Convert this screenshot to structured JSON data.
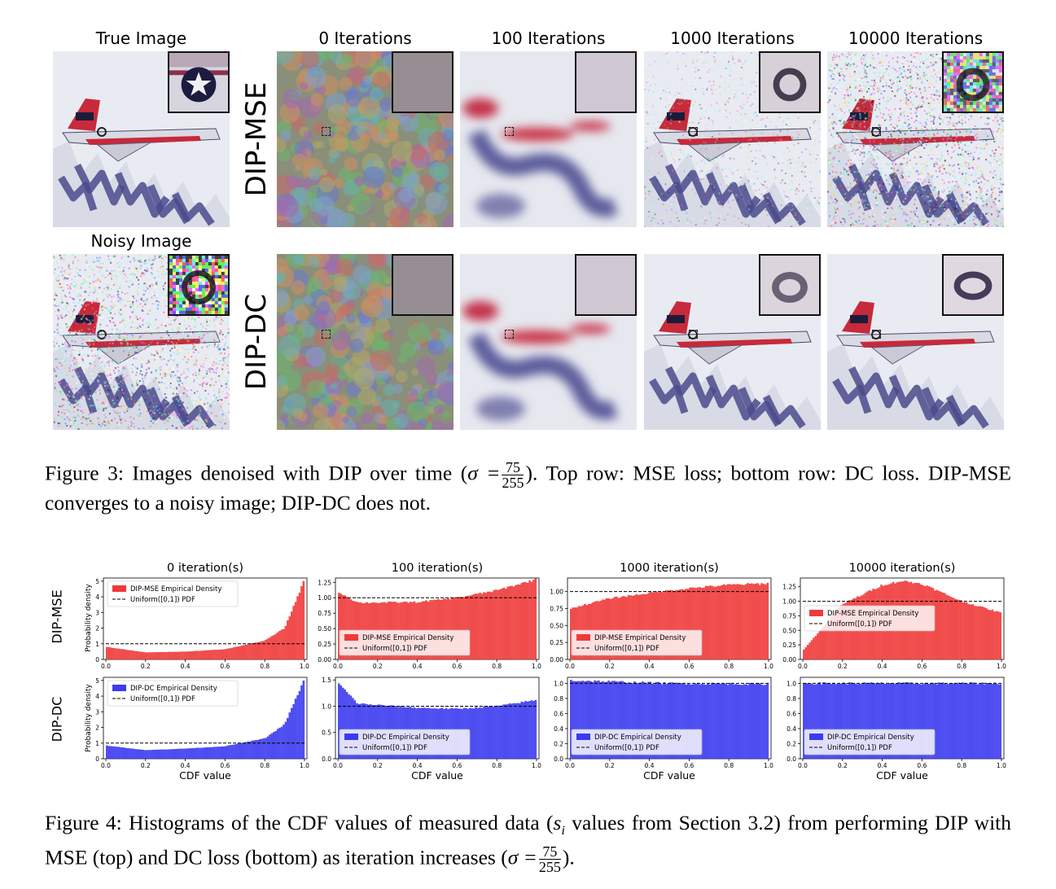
{
  "figure3": {
    "column_titles": [
      "True Image",
      "0 Iterations",
      "100 Iterations",
      "1000 Iterations",
      "10000 Iterations"
    ],
    "noisy_title": "Noisy Image",
    "row_labels": [
      "DIP-MSE",
      "DIP-DC"
    ],
    "caption": {
      "prefix": "Figure 3: Images denoised with DIP over time (",
      "sigma": "σ =",
      "frac_num": "75",
      "frac_den": "255",
      "suffix": "). Top row: MSE loss; bottom row: DC loss. DIP-MSE converges to a noisy image; DIP-DC does not."
    }
  },
  "figure4": {
    "row_labels": [
      "DIP-MSE",
      "DIP-DC"
    ],
    "ylabel": "Probability density",
    "xlabel": "CDF value",
    "legend_labels": {
      "mse": "DIP-MSE Empirical Density",
      "dc": "DIP-DC Empirical Density",
      "uniform": "Uniform([0,1]) PDF"
    },
    "colors": {
      "mse": "#f03a3a",
      "dc": "#3b3bf0"
    },
    "caption": {
      "prefix": "Figure 4: Histograms of the CDF values of measured data (",
      "si": "s",
      "si_sub": "i",
      "middle": " values from Section 3.2) from performing DIP with MSE (top) and DC loss (bottom) as iteration increases (",
      "sigma": "σ =",
      "frac_num": "75",
      "frac_den": "255",
      "suffix": ")."
    }
  },
  "chart_data": [
    {
      "type": "bar",
      "title": "0 iteration(s)",
      "series": [
        {
          "name": "DIP-MSE Empirical Density"
        },
        {
          "name": "Uniform([0,1]) PDF"
        }
      ],
      "ylim": [
        0,
        5.2
      ],
      "yticks": [
        0,
        1,
        2,
        3,
        4,
        5
      ],
      "xticks": [
        0.0,
        0.2,
        0.4,
        0.6,
        0.8,
        1.0
      ],
      "legend": "upper-left",
      "shape": "exp-rise",
      "values_at": {
        "0.0": 0.8,
        "0.2": 0.45,
        "0.4": 0.5,
        "0.6": 0.65,
        "0.8": 1.2,
        "0.9": 2.0,
        "1.0": 5.1
      }
    },
    {
      "type": "bar",
      "title": "100 iteration(s)",
      "series": [
        {
          "name": "DIP-MSE Empirical Density"
        },
        {
          "name": "Uniform([0,1]) PDF"
        }
      ],
      "ylim": [
        0,
        1.32
      ],
      "yticks": [
        0.0,
        0.25,
        0.5,
        0.75,
        1.0,
        1.25
      ],
      "xticks": [
        0.0,
        0.2,
        0.4,
        0.6,
        0.8,
        1.0
      ],
      "legend": "lower-left",
      "values_at": {
        "0.0": 1.1,
        "0.1": 0.92,
        "0.4": 0.93,
        "0.6": 1.0,
        "0.8": 1.12,
        "1.0": 1.3
      }
    },
    {
      "type": "bar",
      "title": "1000 iteration(s)",
      "series": [
        {
          "name": "DIP-MSE Empirical Density"
        },
        {
          "name": "Uniform([0,1]) PDF"
        }
      ],
      "ylim": [
        0,
        1.2
      ],
      "yticks": [
        0.0,
        0.25,
        0.5,
        0.75,
        1.0
      ],
      "xticks": [
        0.0,
        0.2,
        0.4,
        0.6,
        0.8,
        1.0
      ],
      "legend": "lower-left",
      "values_at": {
        "0.0": 0.75,
        "0.2": 0.9,
        "0.4": 0.98,
        "0.6": 1.05,
        "0.8": 1.1,
        "1.0": 1.12
      }
    },
    {
      "type": "bar",
      "title": "10000 iteration(s)",
      "series": [
        {
          "name": "DIP-MSE Empirical Density"
        },
        {
          "name": "Uniform([0,1]) PDF"
        }
      ],
      "ylim": [
        0,
        1.4
      ],
      "yticks": [
        0.0,
        0.25,
        0.5,
        0.75,
        1.0,
        1.25
      ],
      "xticks": [
        0.0,
        0.2,
        0.4,
        0.6,
        0.8,
        1.0
      ],
      "legend": "center-left",
      "values_at": {
        "0.0": 0.15,
        "0.2": 0.95,
        "0.4": 1.28,
        "0.5": 1.35,
        "0.6": 1.3,
        "0.8": 1.0,
        "1.0": 0.8
      }
    },
    {
      "type": "bar",
      "series": [
        {
          "name": "DIP-DC Empirical Density"
        },
        {
          "name": "Uniform([0,1]) PDF"
        }
      ],
      "ylim": [
        0,
        5.2
      ],
      "yticks": [
        0,
        1,
        2,
        3,
        4,
        5
      ],
      "xticks": [
        0.0,
        0.2,
        0.4,
        0.6,
        0.8,
        1.0
      ],
      "legend": "upper-left",
      "values_at": {
        "0.0": 0.85,
        "0.2": 0.55,
        "0.4": 0.65,
        "0.6": 0.8,
        "0.8": 1.3,
        "0.9": 2.2,
        "1.0": 5.1
      }
    },
    {
      "type": "bar",
      "series": [
        {
          "name": "DIP-DC Empirical Density"
        },
        {
          "name": "Uniform([0,1]) PDF"
        }
      ],
      "ylim": [
        0,
        1.55
      ],
      "yticks": [
        0.0,
        0.5,
        1.0,
        1.5
      ],
      "xticks": [
        0.0,
        0.2,
        0.4,
        0.6,
        0.8,
        1.0
      ],
      "legend": "lower-left",
      "values_at": {
        "0.0": 1.45,
        "0.1": 1.05,
        "0.4": 0.97,
        "0.6": 0.95,
        "0.8": 1.0,
        "1.0": 1.12
      }
    },
    {
      "type": "bar",
      "series": [
        {
          "name": "DIP-DC Empirical Density"
        },
        {
          "name": "Uniform([0,1]) PDF"
        }
      ],
      "ylim": [
        0,
        1.08
      ],
      "yticks": [
        0.0,
        0.2,
        0.4,
        0.6,
        0.8,
        1.0
      ],
      "xticks": [
        0.0,
        0.2,
        0.4,
        0.6,
        0.8,
        1.0
      ],
      "legend": "lower-left",
      "values_at": {
        "0.0": 1.04,
        "0.5": 1.0,
        "1.0": 0.99
      }
    },
    {
      "type": "bar",
      "series": [
        {
          "name": "DIP-DC Empirical Density"
        },
        {
          "name": "Uniform([0,1]) PDF"
        }
      ],
      "ylim": [
        0,
        1.08
      ],
      "yticks": [
        0.0,
        0.2,
        0.4,
        0.6,
        0.8,
        1.0
      ],
      "xticks": [
        0.0,
        0.2,
        0.4,
        0.6,
        0.8,
        1.0
      ],
      "legend": "lower-left",
      "values_at": {
        "0.0": 1.0,
        "0.5": 1.0,
        "1.0": 1.0
      }
    }
  ]
}
